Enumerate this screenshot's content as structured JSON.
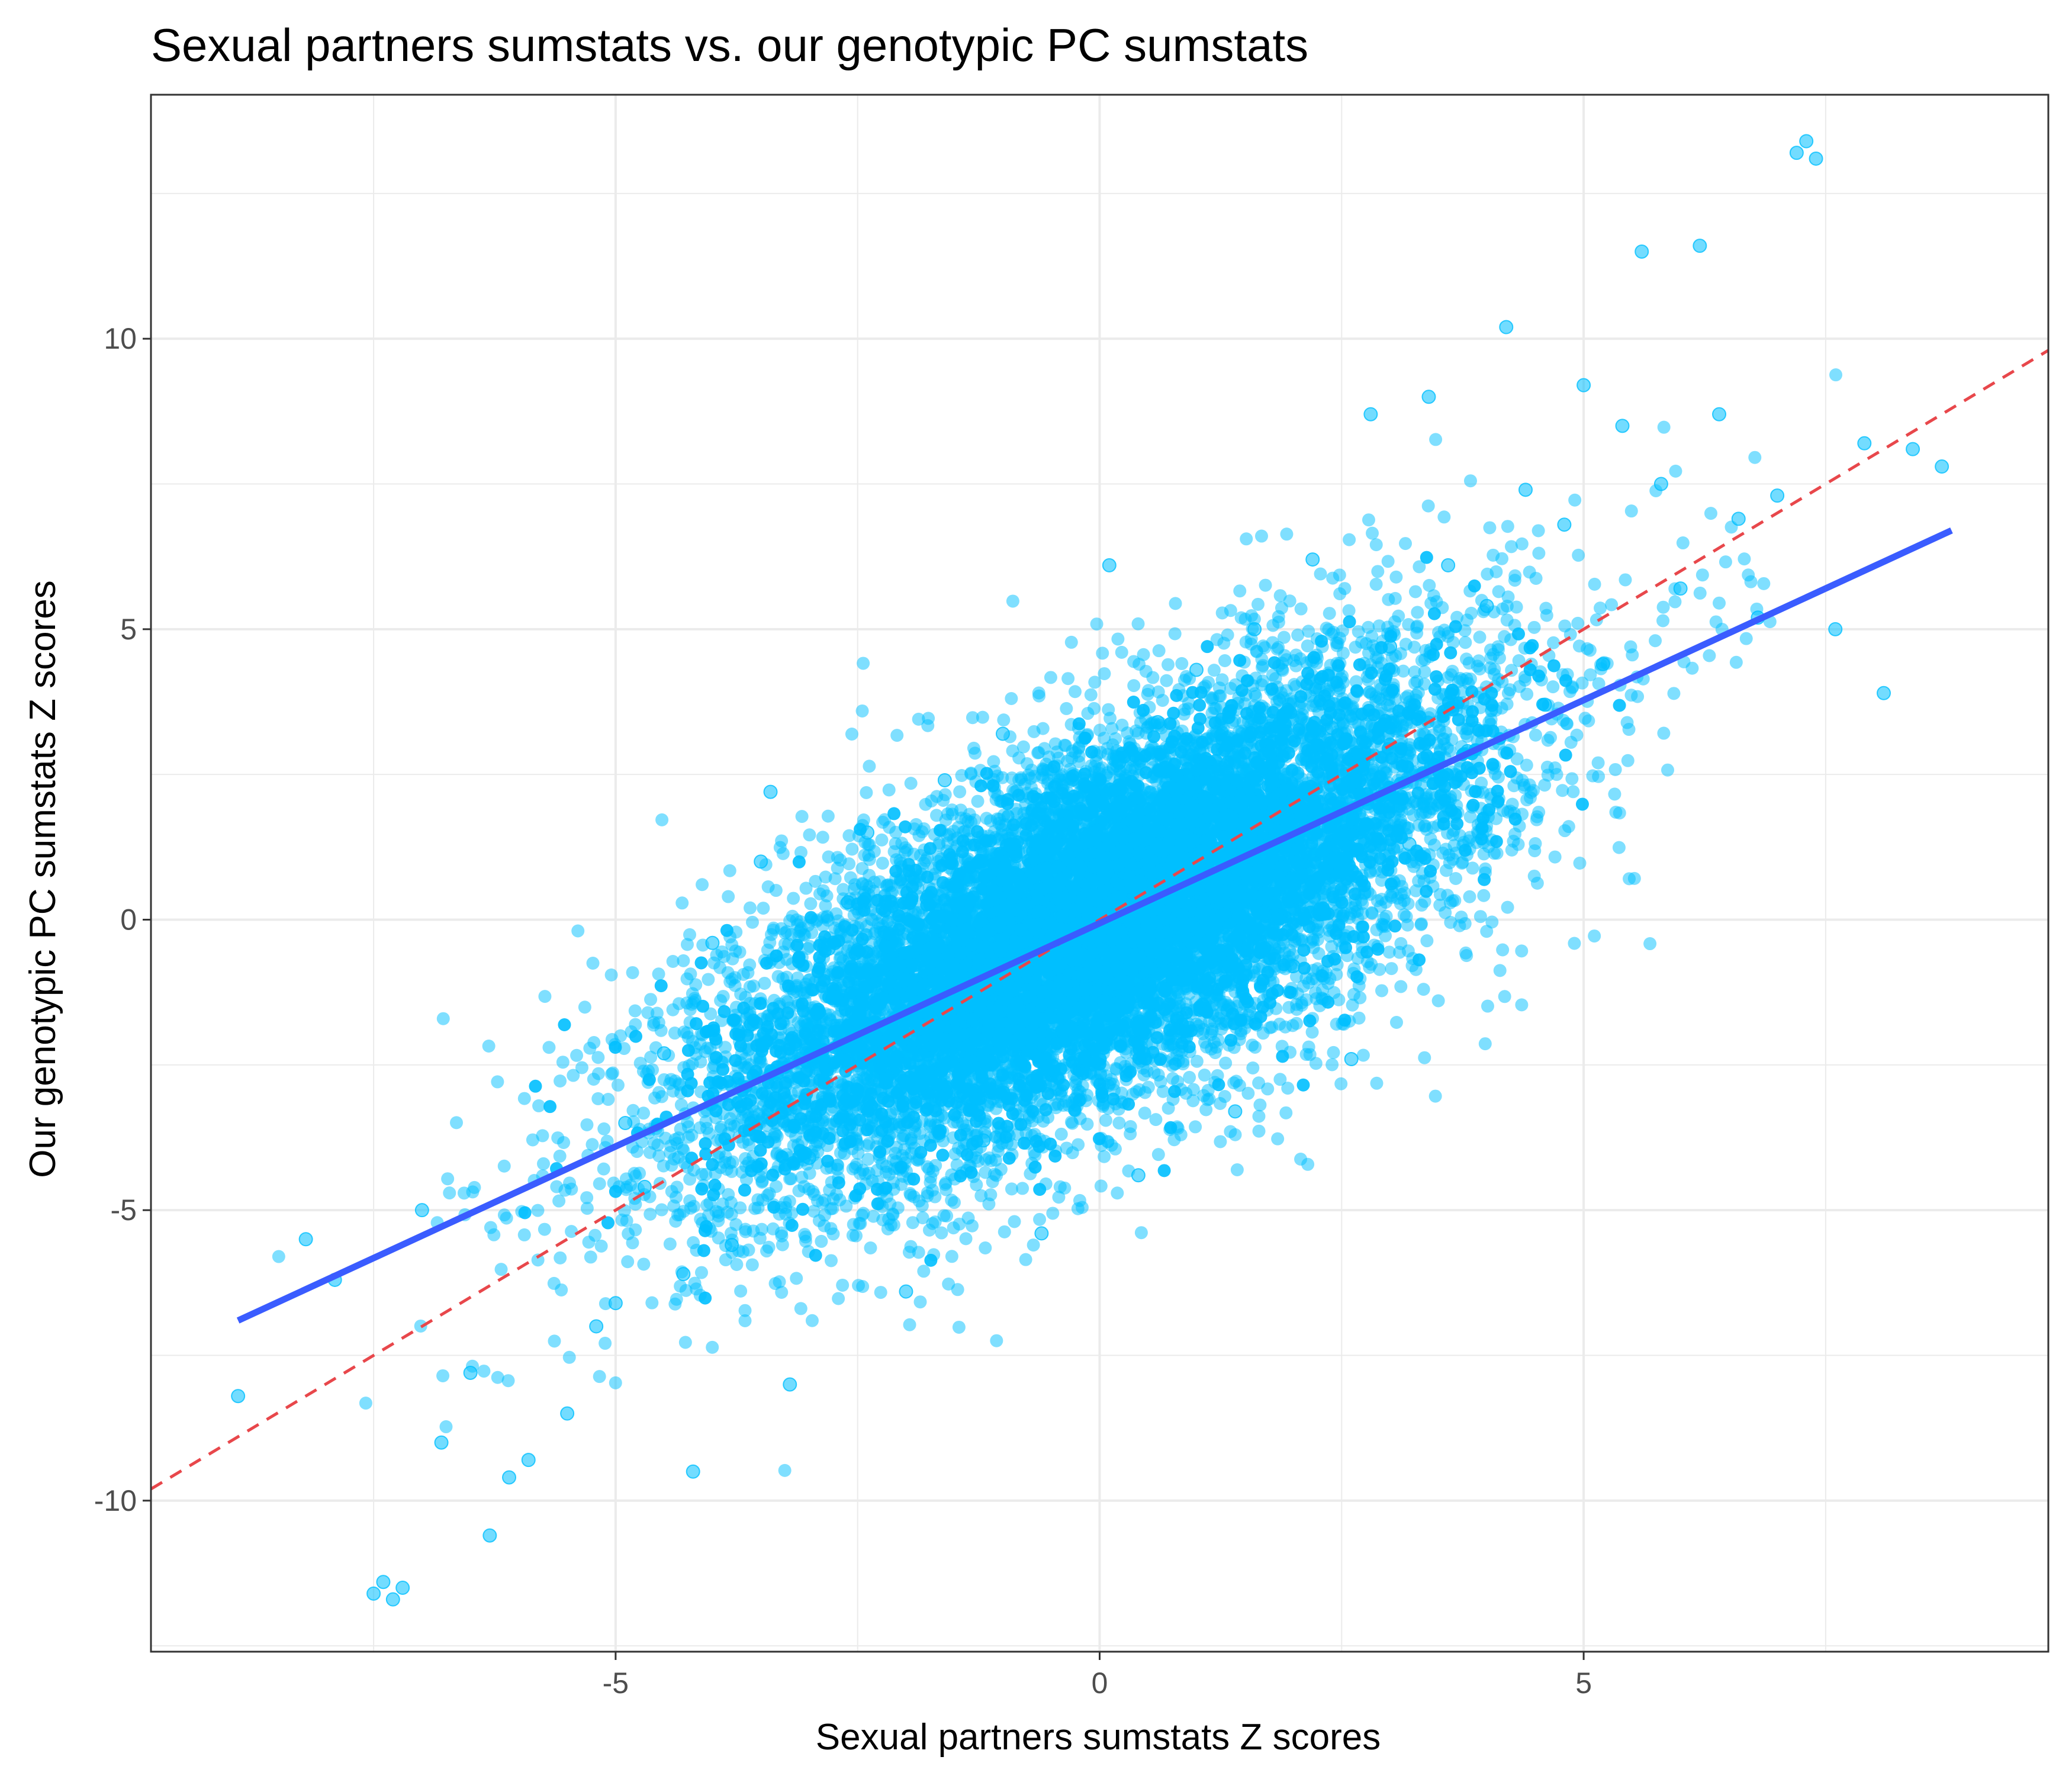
{
  "chart_data": {
    "type": "scatter",
    "title": "Sexual partners sumstats vs. our genotypic PC sumstats",
    "xlabel": "Sexual partners sumstats Z scores",
    "ylabel": "Our genotypic PC sumstats Z scores",
    "xlim": [
      -9.8,
      9.8
    ],
    "ylim": [
      -12.6,
      14.2
    ],
    "x_ticks": [
      -5,
      0,
      5
    ],
    "y_ticks": [
      -10,
      -5,
      0,
      5,
      10
    ],
    "x_tick_labels": [
      "-5",
      "0",
      "5"
    ],
    "y_tick_labels": [
      "-10",
      "-5",
      "0",
      "5",
      "10"
    ],
    "grid": true,
    "legend": "none",
    "colors": {
      "points": "#00BFFF",
      "fit_line": "#3A5CFF",
      "identity_line": "#E8474B",
      "grid": "#EBEBEB",
      "panel_border": "#333333"
    },
    "series": [
      {
        "type": "scatter",
        "description": "dense elliptical cloud centered near (0,0)",
        "points": [
          [
            -8.9,
            -8.2
          ],
          [
            -8.2,
            -5.5
          ],
          [
            -7.9,
            -6.2
          ],
          [
            -7.5,
            -11.6
          ],
          [
            -7.4,
            -11.4
          ],
          [
            -7.3,
            -11.7
          ],
          [
            -7.2,
            -11.5
          ],
          [
            -7.0,
            -5.0
          ],
          [
            -6.8,
            -9.0
          ],
          [
            -6.5,
            -7.8
          ],
          [
            -6.3,
            -10.6
          ],
          [
            -6.1,
            -9.6
          ],
          [
            -5.9,
            -9.3
          ],
          [
            -5.5,
            -8.5
          ],
          [
            -5.2,
            -7.0
          ],
          [
            -5.0,
            -6.6
          ],
          [
            -4.9,
            -3.5
          ],
          [
            -4.7,
            -4.6
          ],
          [
            -4.5,
            -2.3
          ],
          [
            -4.3,
            -6.1
          ],
          [
            -4.2,
            -9.5
          ],
          [
            -4.0,
            -0.4
          ],
          [
            -3.8,
            -5.6
          ],
          [
            -3.6,
            -1.8
          ],
          [
            -3.5,
            1.0
          ],
          [
            -3.4,
            2.2
          ],
          [
            -3.2,
            -8.0
          ],
          [
            -3.0,
            -4.1
          ],
          [
            -2.8,
            -0.5
          ],
          [
            -2.6,
            0.3
          ],
          [
            -2.4,
            1.5
          ],
          [
            -2.2,
            -2.2
          ],
          [
            -2.0,
            -6.4
          ],
          [
            -1.8,
            -1.1
          ],
          [
            -1.6,
            2.4
          ],
          [
            -1.4,
            0.8
          ],
          [
            -1.2,
            -3.8
          ],
          [
            -1.0,
            3.2
          ],
          [
            -0.8,
            -0.9
          ],
          [
            -0.6,
            -5.4
          ],
          [
            -0.4,
            1.6
          ],
          [
            -0.2,
            -2.4
          ],
          [
            0.0,
            0.1
          ],
          [
            0.1,
            6.1
          ],
          [
            0.2,
            2.7
          ],
          [
            0.4,
            -4.4
          ],
          [
            0.6,
            3.4
          ],
          [
            0.8,
            -1.7
          ],
          [
            1.0,
            4.3
          ],
          [
            1.2,
            0.4
          ],
          [
            1.4,
            -3.3
          ],
          [
            1.6,
            5.0
          ],
          [
            1.8,
            2.1
          ],
          [
            2.0,
            -0.8
          ],
          [
            2.2,
            6.2
          ],
          [
            2.4,
            3.3
          ],
          [
            2.6,
            -2.4
          ],
          [
            2.8,
            8.7
          ],
          [
            3.0,
            4.7
          ],
          [
            3.2,
            1.3
          ],
          [
            3.4,
            9.0
          ],
          [
            3.6,
            6.1
          ],
          [
            3.8,
            2.9
          ],
          [
            4.0,
            5.4
          ],
          [
            4.2,
            10.2
          ],
          [
            4.4,
            7.4
          ],
          [
            4.6,
            3.7
          ],
          [
            4.8,
            6.8
          ],
          [
            5.0,
            9.2
          ],
          [
            5.2,
            4.4
          ],
          [
            5.4,
            8.5
          ],
          [
            5.6,
            11.5
          ],
          [
            5.8,
            7.5
          ],
          [
            6.0,
            5.7
          ],
          [
            6.2,
            11.6
          ],
          [
            6.4,
            8.7
          ],
          [
            6.6,
            6.9
          ],
          [
            6.8,
            5.2
          ],
          [
            7.0,
            7.3
          ],
          [
            7.2,
            13.2
          ],
          [
            7.3,
            13.4
          ],
          [
            7.4,
            13.1
          ],
          [
            7.6,
            5.0
          ],
          [
            7.9,
            8.2
          ],
          [
            8.1,
            3.9
          ],
          [
            8.4,
            8.1
          ],
          [
            8.7,
            7.8
          ]
        ]
      }
    ],
    "lines": [
      {
        "type": "linear_fit",
        "style": "solid",
        "from": [
          -8.9,
          -6.9
        ],
        "to": [
          8.8,
          6.7
        ]
      },
      {
        "type": "identity",
        "style": "dashed",
        "from": [
          -9.8,
          -9.8
        ],
        "to": [
          9.8,
          9.8
        ]
      }
    ]
  }
}
